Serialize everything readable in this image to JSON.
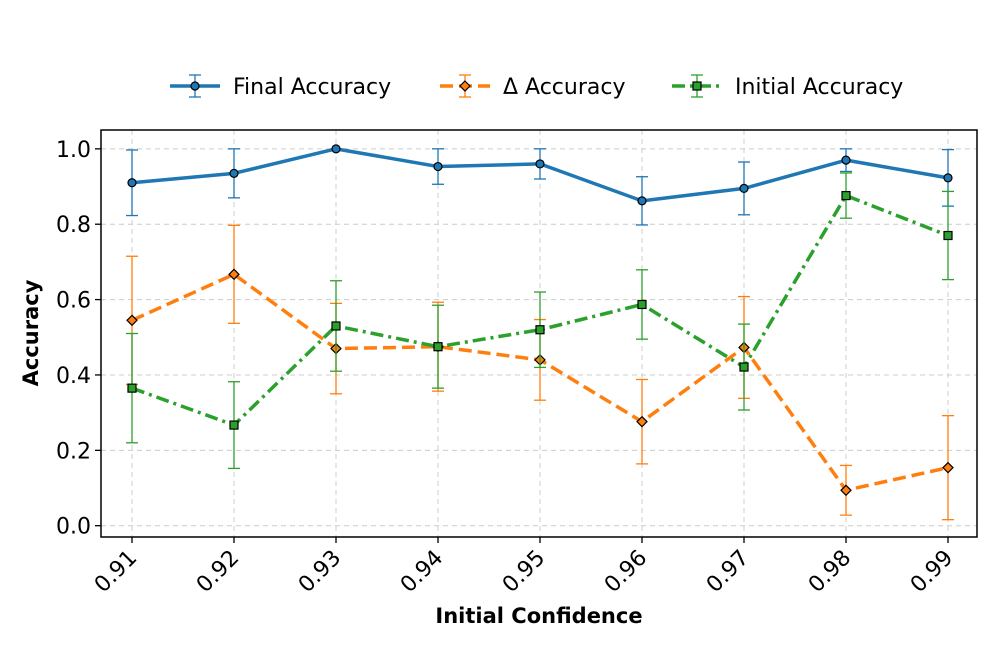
{
  "chart_data": {
    "type": "line",
    "xlabel": "Initial Confidence",
    "ylabel": "Accuracy",
    "x": [
      0.91,
      0.92,
      0.93,
      0.94,
      0.95,
      0.96,
      0.97,
      0.98,
      0.99
    ],
    "x_tick_labels": [
      "0.91",
      "0.92",
      "0.93",
      "0.94",
      "0.95",
      "0.96",
      "0.97",
      "0.98",
      "0.99"
    ],
    "ylim": [
      -0.03,
      1.05
    ],
    "y_ticks": [
      0.0,
      0.2,
      0.4,
      0.6,
      0.8,
      1.0
    ],
    "y_tick_labels": [
      "0.0",
      "0.2",
      "0.4",
      "0.6",
      "0.8",
      "1.0"
    ],
    "grid": true,
    "legend_position": "top-center",
    "series": [
      {
        "name": "Final Accuracy",
        "color": "#1f77b4",
        "line_style": "solid",
        "marker": "circle",
        "values": [
          0.91,
          0.935,
          1.0,
          0.953,
          0.96,
          0.862,
          0.895,
          0.97,
          0.923
        ],
        "error": [
          0.087,
          0.065,
          0.0,
          0.047,
          0.04,
          0.064,
          0.07,
          0.03,
          0.075
        ]
      },
      {
        "name": "Δ Accuracy",
        "color": "#ff7f0e",
        "line_style": "dashed",
        "marker": "diamond",
        "values": [
          0.545,
          0.667,
          0.47,
          0.475,
          0.44,
          0.276,
          0.473,
          0.094,
          0.154
        ],
        "error": [
          0.17,
          0.13,
          0.12,
          0.118,
          0.107,
          0.112,
          0.135,
          0.066,
          0.138
        ]
      },
      {
        "name": "Initial Accuracy",
        "color": "#2ca02c",
        "line_style": "dashdot",
        "marker": "square",
        "values": [
          0.365,
          0.267,
          0.53,
          0.475,
          0.52,
          0.587,
          0.421,
          0.876,
          0.77
        ],
        "error": [
          0.145,
          0.115,
          0.12,
          0.11,
          0.1,
          0.092,
          0.114,
          0.06,
          0.117
        ]
      }
    ]
  }
}
